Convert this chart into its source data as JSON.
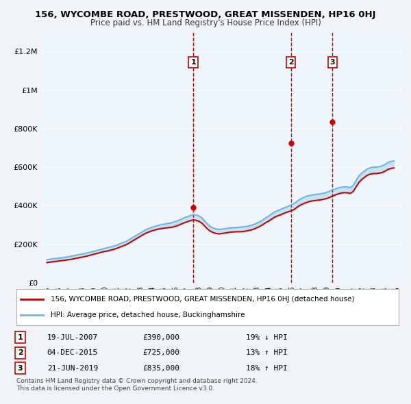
{
  "title": "156, WYCOMBE ROAD, PRESTWOOD, GREAT MISSENDEN, HP16 0HJ",
  "subtitle": "Price paid vs. HM Land Registry's House Price Index (HPI)",
  "legend_line1": "156, WYCOMBE ROAD, PRESTWOOD, GREAT MISSENDEN, HP16 0HJ (detached house)",
  "legend_line2": "HPI: Average price, detached house, Buckinghamshire",
  "footnote1": "Contains HM Land Registry data © Crown copyright and database right 2024.",
  "footnote2": "This data is licensed under the Open Government Licence v3.0.",
  "transactions": [
    {
      "label": "1",
      "date": "19-JUL-2007",
      "price": 390000,
      "pct": "19% ↓ HPI"
    },
    {
      "label": "2",
      "date": "04-DEC-2015",
      "price": 725000,
      "pct": "13% ↑ HPI"
    },
    {
      "label": "3",
      "date": "21-JUN-2019",
      "price": 835000,
      "pct": "18% ↑ HPI"
    }
  ],
  "transaction_years": [
    2007.54,
    2015.92,
    2019.47
  ],
  "transaction_prices": [
    390000,
    725000,
    835000
  ],
  "vline_years": [
    2007.54,
    2015.92,
    2019.47
  ],
  "hpi_color": "#6eb5e0",
  "price_color": "#cc0000",
  "vline_color": "#cc0000",
  "bg_color": "#ddeeff",
  "plot_bg": "#eef5fb",
  "ylim": [
    0,
    1300000
  ],
  "xlim_start": 1994.5,
  "xlim_end": 2025.5,
  "yticks": [
    0,
    200000,
    400000,
    600000,
    800000,
    1000000,
    1200000
  ],
  "ytick_labels": [
    "£0",
    "£200K",
    "£400K",
    "£600K",
    "£800K",
    "£1M",
    "£1.2M"
  ],
  "xticks": [
    1995,
    1996,
    1997,
    1998,
    1999,
    2000,
    2001,
    2002,
    2003,
    2004,
    2005,
    2006,
    2007,
    2008,
    2009,
    2010,
    2011,
    2012,
    2013,
    2014,
    2015,
    2016,
    2017,
    2018,
    2019,
    2020,
    2021,
    2022,
    2023,
    2024,
    2025
  ],
  "hpi_years": [
    1995,
    1995.25,
    1995.5,
    1995.75,
    1996,
    1996.25,
    1996.5,
    1996.75,
    1997,
    1997.25,
    1997.5,
    1997.75,
    1998,
    1998.25,
    1998.5,
    1998.75,
    1999,
    1999.25,
    1999.5,
    1999.75,
    2000,
    2000.25,
    2000.5,
    2000.75,
    2001,
    2001.25,
    2001.5,
    2001.75,
    2002,
    2002.25,
    2002.5,
    2002.75,
    2003,
    2003.25,
    2003.5,
    2003.75,
    2004,
    2004.25,
    2004.5,
    2004.75,
    2005,
    2005.25,
    2005.5,
    2005.75,
    2006,
    2006.25,
    2006.5,
    2006.75,
    2007,
    2007.25,
    2007.5,
    2007.75,
    2008,
    2008.25,
    2008.5,
    2008.75,
    2009,
    2009.25,
    2009.5,
    2009.75,
    2010,
    2010.25,
    2010.5,
    2010.75,
    2011,
    2011.25,
    2011.5,
    2011.75,
    2012,
    2012.25,
    2012.5,
    2012.75,
    2013,
    2013.25,
    2013.5,
    2013.75,
    2014,
    2014.25,
    2014.5,
    2014.75,
    2015,
    2015.25,
    2015.5,
    2015.75,
    2016,
    2016.25,
    2016.5,
    2016.75,
    2017,
    2017.25,
    2017.5,
    2017.75,
    2018,
    2018.25,
    2018.5,
    2018.75,
    2019,
    2019.25,
    2019.5,
    2019.75,
    2020,
    2020.25,
    2020.5,
    2020.75,
    2021,
    2021.25,
    2021.5,
    2021.75,
    2022,
    2022.25,
    2022.5,
    2022.75,
    2023,
    2023.25,
    2023.5,
    2023.75,
    2024,
    2024.25,
    2024.5,
    2024.75
  ],
  "hpi_values": [
    120000,
    122000,
    124000,
    126000,
    128000,
    130000,
    132000,
    134000,
    137000,
    140000,
    143000,
    146000,
    149000,
    152000,
    156000,
    160000,
    163000,
    167000,
    171000,
    175000,
    179000,
    183000,
    187000,
    191000,
    196000,
    202000,
    208000,
    214000,
    222000,
    231000,
    240000,
    249000,
    258000,
    267000,
    276000,
    282000,
    288000,
    293000,
    297000,
    301000,
    304000,
    307000,
    310000,
    313000,
    318000,
    323000,
    330000,
    337000,
    342000,
    348000,
    353000,
    352000,
    348000,
    338000,
    322000,
    305000,
    292000,
    284000,
    279000,
    277000,
    278000,
    281000,
    283000,
    285000,
    286000,
    287000,
    288000,
    290000,
    291000,
    294000,
    298000,
    303000,
    310000,
    317000,
    326000,
    337000,
    346000,
    357000,
    367000,
    374000,
    380000,
    387000,
    393000,
    399000,
    405000,
    414000,
    426000,
    435000,
    443000,
    449000,
    453000,
    456000,
    458000,
    460000,
    462000,
    465000,
    470000,
    476000,
    482000,
    488000,
    493000,
    496000,
    498000,
    497000,
    494000,
    505000,
    530000,
    555000,
    570000,
    582000,
    592000,
    598000,
    600000,
    600000,
    603000,
    607000,
    615000,
    625000,
    630000,
    632000
  ],
  "price_years": [
    1995,
    1995.25,
    1995.5,
    1995.75,
    1996,
    1996.25,
    1996.5,
    1996.75,
    1997,
    1997.25,
    1997.5,
    1997.75,
    1998,
    1998.25,
    1998.5,
    1998.75,
    1999,
    1999.25,
    1999.5,
    1999.75,
    2000,
    2000.25,
    2000.5,
    2000.75,
    2001,
    2001.25,
    2001.5,
    2001.75,
    2002,
    2002.25,
    2002.5,
    2002.75,
    2003,
    2003.25,
    2003.5,
    2003.75,
    2004,
    2004.25,
    2004.5,
    2004.75,
    2005,
    2005.25,
    2005.5,
    2005.75,
    2006,
    2006.25,
    2006.5,
    2006.75,
    2007,
    2007.25,
    2007.5,
    2007.75,
    2008,
    2008.25,
    2008.5,
    2008.75,
    2009,
    2009.25,
    2009.5,
    2009.75,
    2010,
    2010.25,
    2010.5,
    2010.75,
    2011,
    2011.25,
    2011.5,
    2011.75,
    2012,
    2012.25,
    2012.5,
    2012.75,
    2013,
    2013.25,
    2013.5,
    2013.75,
    2014,
    2014.25,
    2014.5,
    2014.75,
    2015,
    2015.25,
    2015.5,
    2015.75,
    2016,
    2016.25,
    2016.5,
    2016.75,
    2017,
    2017.25,
    2017.5,
    2017.75,
    2018,
    2018.25,
    2018.5,
    2018.75,
    2019,
    2019.25,
    2019.5,
    2019.75,
    2020,
    2020.25,
    2020.5,
    2020.75,
    2021,
    2021.25,
    2021.5,
    2021.75,
    2022,
    2022.25,
    2022.5,
    2022.75,
    2023,
    2023.25,
    2023.5,
    2023.75,
    2024,
    2024.25,
    2024.5,
    2024.75
  ],
  "price_values": [
    105000,
    107000,
    109000,
    111000,
    113000,
    115000,
    117000,
    119000,
    121000,
    124000,
    127000,
    130000,
    133000,
    136000,
    140000,
    144000,
    148000,
    152000,
    156000,
    160000,
    163000,
    166000,
    170000,
    174000,
    179000,
    185000,
    191000,
    197000,
    205000,
    214000,
    223000,
    232000,
    241000,
    250000,
    258000,
    264000,
    270000,
    274000,
    278000,
    281000,
    283000,
    285000,
    287000,
    289000,
    293000,
    298000,
    305000,
    311000,
    316000,
    322000,
    326000,
    325000,
    320000,
    311000,
    296000,
    280000,
    268000,
    261000,
    256000,
    254000,
    256000,
    258000,
    261000,
    263000,
    264000,
    265000,
    265000,
    266000,
    268000,
    271000,
    274000,
    279000,
    286000,
    293000,
    302000,
    312000,
    320000,
    330000,
    340000,
    347000,
    352000,
    359000,
    365000,
    370000,
    375000,
    383000,
    395000,
    404000,
    411000,
    417000,
    422000,
    425000,
    427000,
    429000,
    431000,
    434000,
    438000,
    444000,
    450000,
    457000,
    462000,
    466000,
    468000,
    467000,
    464000,
    474000,
    498000,
    522000,
    537000,
    549000,
    559000,
    565000,
    567000,
    567000,
    569000,
    573000,
    580000,
    589000,
    594000,
    596000
  ],
  "fill_alpha": 0.3
}
